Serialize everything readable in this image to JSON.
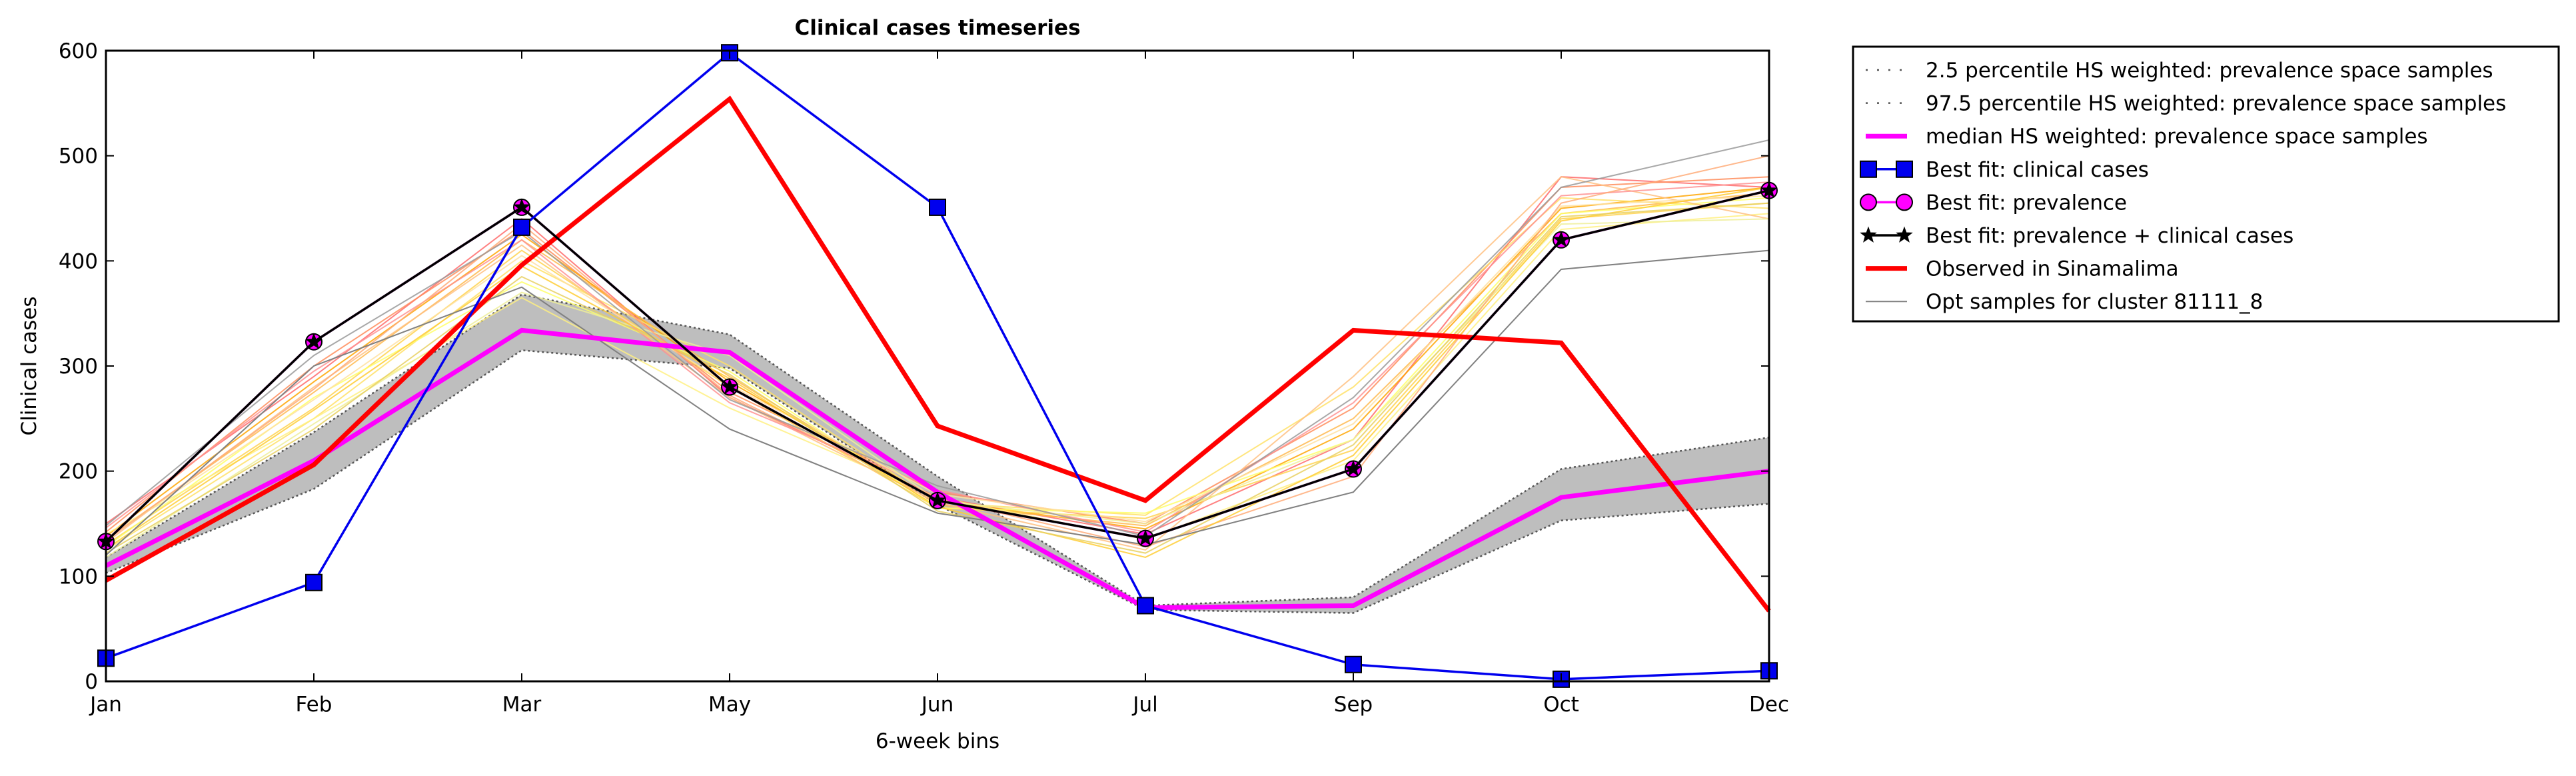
{
  "chart_data": {
    "type": "line",
    "title": "Clinical cases timeseries",
    "xlabel": "6-week bins",
    "ylabel": "Clinical cases",
    "categories": [
      "Jan",
      "Feb",
      "Mar",
      "May",
      "Jun",
      "Jul",
      "Sep",
      "Oct",
      "Dec"
    ],
    "ylim": [
      0,
      600
    ],
    "yticks": [
      0,
      100,
      200,
      300,
      400,
      500,
      600
    ],
    "grid": false,
    "legend_position": "outside-top-right",
    "band": {
      "lower_name": "2.5 percentile HS weighted: prevalence space samples",
      "upper_name": "97.5 percentile HS weighted: prevalence space samples",
      "lower": [
        103,
        183,
        315,
        298,
        168,
        68,
        65,
        153,
        169
      ],
      "upper": [
        118,
        237,
        368,
        330,
        195,
        72,
        80,
        202,
        232
      ],
      "fill_color": "#bebebe",
      "edge_color": "#555555"
    },
    "series": [
      {
        "name": "median HS weighted: prevalence space samples",
        "values": [
          110,
          210,
          334,
          313,
          180,
          70,
          72,
          175,
          200
        ],
        "color": "#ff00ff",
        "marker": "none",
        "style": "thick"
      },
      {
        "name": "Best fit: clinical cases",
        "values": [
          22,
          94,
          432,
          598,
          451,
          72,
          16,
          2,
          10
        ],
        "color": "#0000ee",
        "marker": "square",
        "style": "normal"
      },
      {
        "name": "Best fit: prevalence",
        "values": [
          133,
          323,
          451,
          280,
          172,
          136,
          202,
          420,
          467
        ],
        "color": "#ff00ff",
        "marker": "circle",
        "style": "normal"
      },
      {
        "name": "Best fit: prevalence + clinical cases",
        "values": [
          133,
          323,
          451,
          280,
          172,
          136,
          202,
          420,
          467
        ],
        "color": "#000000",
        "marker": "star",
        "style": "normal"
      },
      {
        "name": "Observed in Sinamalima",
        "values": [
          96,
          206,
          396,
          554,
          243,
          172,
          334,
          322,
          67
        ],
        "color": "#ff0000",
        "marker": "none",
        "style": "thick"
      },
      {
        "name": "Opt samples for cluster 81111_8",
        "values": [
          120,
          300,
          375,
          240,
          160,
          130,
          180,
          392,
          410
        ],
        "color": "#808080",
        "marker": "none",
        "style": "thin"
      }
    ],
    "sample_lines": [
      {
        "values": [
          150,
          290,
          440,
          270,
          175,
          140,
          230,
          480,
          470
        ],
        "color": "#ff6a6a"
      },
      {
        "values": [
          142,
          300,
          430,
          275,
          180,
          150,
          260,
          470,
          480
        ],
        "color": "#ff8c5a"
      },
      {
        "values": [
          138,
          285,
          425,
          285,
          172,
          145,
          240,
          450,
          470
        ],
        "color": "#ffa500"
      },
      {
        "values": [
          135,
          275,
          420,
          290,
          168,
          148,
          250,
          445,
          465
        ],
        "color": "#ffb84d"
      },
      {
        "values": [
          130,
          260,
          410,
          280,
          165,
          155,
          220,
          440,
          455
        ],
        "color": "#ffd24d"
      },
      {
        "values": [
          125,
          250,
          400,
          300,
          170,
          158,
          280,
          460,
          450
        ],
        "color": "#ffe066"
      },
      {
        "values": [
          128,
          270,
          380,
          295,
          165,
          160,
          230,
          445,
          460
        ],
        "color": "#ffff66"
      },
      {
        "values": [
          140,
          250,
          365,
          260,
          175,
          135,
          210,
          430,
          445
        ],
        "color": "#fff080"
      },
      {
        "values": [
          132,
          280,
          415,
          270,
          170,
          125,
          290,
          480,
          440
        ],
        "color": "#ffc080"
      },
      {
        "values": [
          146,
          295,
          420,
          265,
          182,
          142,
          265,
          462,
          475
        ],
        "color": "#ff9090"
      },
      {
        "values": [
          136,
          268,
          405,
          282,
          178,
          152,
          245,
          452,
          462
        ],
        "color": "#ffe0a0"
      },
      {
        "values": [
          118,
          245,
          370,
          310,
          172,
          150,
          230,
          435,
          440
        ],
        "color": "#eeee99"
      },
      {
        "values": [
          134,
          278,
          435,
          272,
          174,
          128,
          195,
          455,
          500
        ],
        "color": "#ffaa77"
      },
      {
        "values": [
          126,
          258,
          395,
          288,
          166,
          118,
          215,
          438,
          470
        ],
        "color": "#ffcc33"
      },
      {
        "values": [
          122,
          240,
          385,
          292,
          162,
          122,
          225,
          442,
          455
        ],
        "color": "#e8d060"
      },
      {
        "values": [
          148,
          310,
          428,
          268,
          186,
          138,
          270,
          470,
          515
        ],
        "color": "#999999"
      }
    ]
  }
}
